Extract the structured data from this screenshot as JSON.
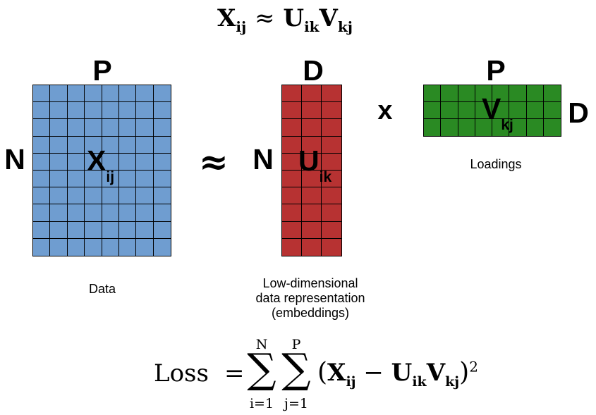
{
  "formula_top": {
    "X": "X",
    "X_sub": "ij",
    "approx": "≈",
    "U": "U",
    "U_sub": "ik",
    "V": "V",
    "V_sub": "kj"
  },
  "matrix_x": {
    "top_label": "P",
    "side_label": "N",
    "symbol": "X",
    "subscript": "ij",
    "caption": "Data",
    "color": "#6f9dd0",
    "rows": 10,
    "cols": 8
  },
  "approx_symbol": "≈",
  "matrix_u": {
    "top_label": "D",
    "side_label": "N",
    "symbol": "U",
    "subscript": "ik",
    "caption_lines": [
      "Low-dimensional",
      "data representation",
      "(embeddings)"
    ],
    "color": "#b73232",
    "rows": 10,
    "cols": 3
  },
  "times_symbol": "x",
  "matrix_v": {
    "top_label": "P",
    "side_label": "D",
    "symbol": "V",
    "subscript": "kj",
    "caption": "Loadings",
    "color": "#2a8a23",
    "rows": 3,
    "cols": 8
  },
  "loss_formula": {
    "lhs": "Loss",
    "equals": "=",
    "sum1": {
      "upper": "N",
      "lower": "i=1"
    },
    "sum2": {
      "upper": "P",
      "lower": "j=1"
    },
    "X": "X",
    "X_sub": "ij",
    "minus": "−",
    "U": "U",
    "U_sub": "ik",
    "V": "V",
    "V_sub": "kj",
    "power": "2"
  }
}
